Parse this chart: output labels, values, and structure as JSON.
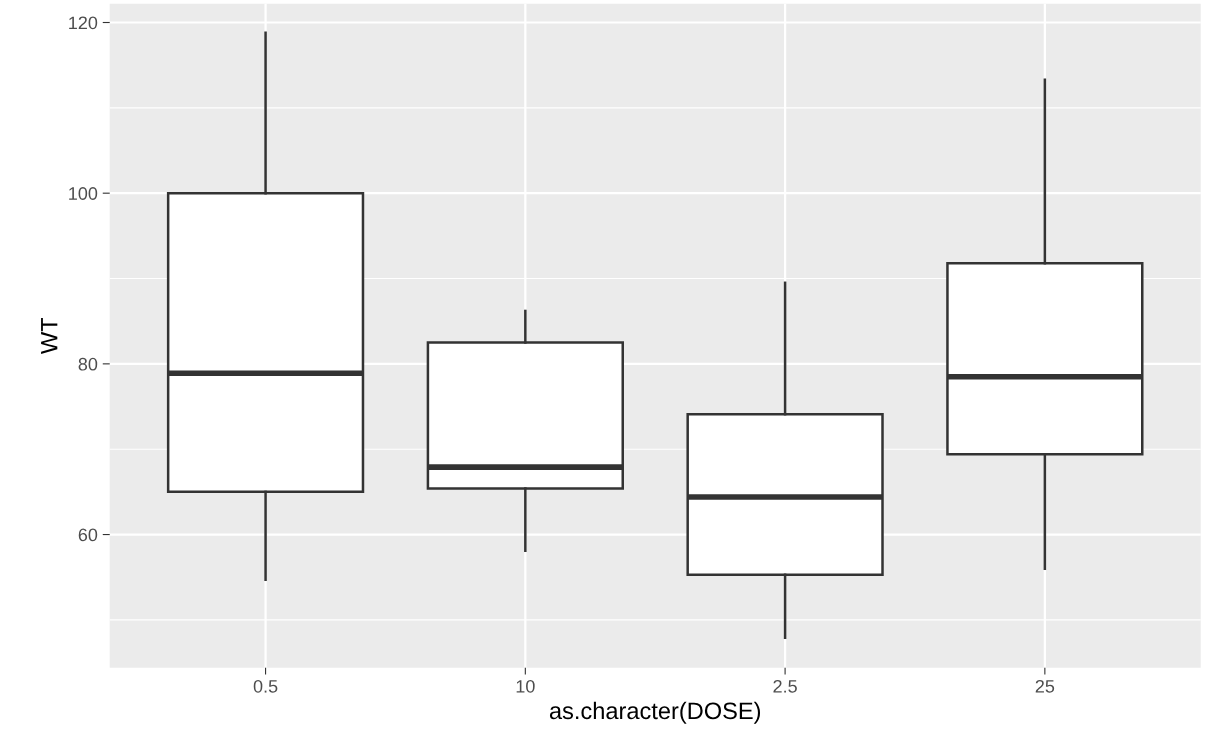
{
  "chart_data": {
    "type": "box",
    "xlabel": "as.character(DOSE)",
    "ylabel": "WT",
    "categories": [
      "0.5",
      "10",
      "2.5",
      "25"
    ],
    "boxes": [
      {
        "low": 54.7,
        "q1": 65,
        "median": 78.9,
        "q3": 100,
        "high": 118.8
      },
      {
        "low": 58.1,
        "q1": 65.4,
        "median": 67.9,
        "q3": 82.5,
        "high": 86.2
      },
      {
        "low": 47.9,
        "q1": 55.3,
        "median": 64.4,
        "q3": 74.1,
        "high": 89.5
      },
      {
        "low": 56.0,
        "q1": 69.4,
        "median": 78.5,
        "q3": 91.8,
        "high": 113.3
      }
    ],
    "ylim": [
      44.4,
      122.2
    ],
    "yticks": [
      60,
      80,
      100,
      120
    ],
    "grid": true
  }
}
